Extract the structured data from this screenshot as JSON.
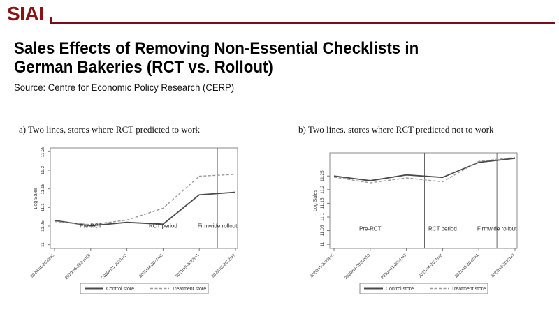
{
  "header": {
    "logo": "SIAI",
    "brand_color": "#8B1113"
  },
  "title": {
    "line1": "Sales Effects of Removing Non-Essential Checklists in",
    "line2": "German Bakeries (RCT vs. Rollout)"
  },
  "source": "Source: Centre for Economic Policy Research (CERP)",
  "chart_data": [
    {
      "type": "line",
      "title": "a) Two lines, stores where RCT predicted to work",
      "ylabel": "Log Sales",
      "categories": [
        "2020m1-2020m5",
        "2020m6-2020m10",
        "2020m11-2021m3",
        "2021m4-2021m8",
        "2021m9-2022m1",
        "2022m2-2022m7"
      ],
      "yticks": [
        "11",
        "11.05",
        "11.1",
        "11.15",
        "11.2",
        "11.25"
      ],
      "ytick_values": [
        11,
        11.05,
        11.1,
        11.15,
        11.2,
        11.25
      ],
      "ylim": [
        10.99,
        11.26
      ],
      "grid": false,
      "legend_position": "bottom-center",
      "series": [
        {
          "name": "Control store",
          "style": "solid",
          "color": "#4a4a4a",
          "values": [
            11.065,
            11.051,
            11.06,
            11.055,
            11.134,
            11.141
          ]
        },
        {
          "name": "Treatment store",
          "style": "dashed",
          "color": "#9a9a9a",
          "values": [
            11.062,
            11.054,
            11.066,
            11.098,
            11.184,
            11.189
          ]
        }
      ],
      "vlines": [
        2.5,
        4.5
      ],
      "annotations": [
        {
          "text": "Pre-RCT",
          "x": 1.0,
          "y": 11.045
        },
        {
          "text": "RCT period",
          "x": 3.0,
          "y": 11.045
        },
        {
          "text": "Firmwide rollout",
          "x": 4.5,
          "y": 11.045
        }
      ],
      "legend": [
        "Control store",
        "Treatment store"
      ]
    },
    {
      "type": "line",
      "title": "b) Two lines, stores where RCT predicted not to work",
      "ylabel": "Log Sales",
      "categories": [
        "2020m1-2020m5",
        "2020m6-2020m10",
        "2020m11-2021m3",
        "2021m4-2021m8",
        "2021m9-2022m1",
        "2022m2-2022m7"
      ],
      "yticks": [
        "11",
        "11.05",
        "11.1",
        "11.15",
        "11.2",
        "11.25"
      ],
      "ytick_values": [
        11,
        11.05,
        11.1,
        11.15,
        11.2,
        11.25
      ],
      "ylim": [
        10.985,
        11.335
      ],
      "grid": false,
      "legend_position": "bottom-center",
      "series": [
        {
          "name": "Control store",
          "style": "solid",
          "color": "#4a4a4a",
          "values": [
            11.25,
            11.233,
            11.254,
            11.245,
            11.3,
            11.315
          ]
        },
        {
          "name": "Treatment store",
          "style": "dashed",
          "color": "#9a9a9a",
          "values": [
            11.246,
            11.225,
            11.243,
            11.229,
            11.304,
            11.318
          ]
        }
      ],
      "vlines": [
        2.5,
        4.5
      ],
      "annotations": [
        {
          "text": "Pre-RCT",
          "x": 1.0,
          "y": 11.05
        },
        {
          "text": "RCT period",
          "x": 3.0,
          "y": 11.05
        },
        {
          "text": "Firmwide rollout",
          "x": 4.5,
          "y": 11.05
        }
      ],
      "legend": [
        "Control store",
        "Treatment store"
      ]
    }
  ]
}
